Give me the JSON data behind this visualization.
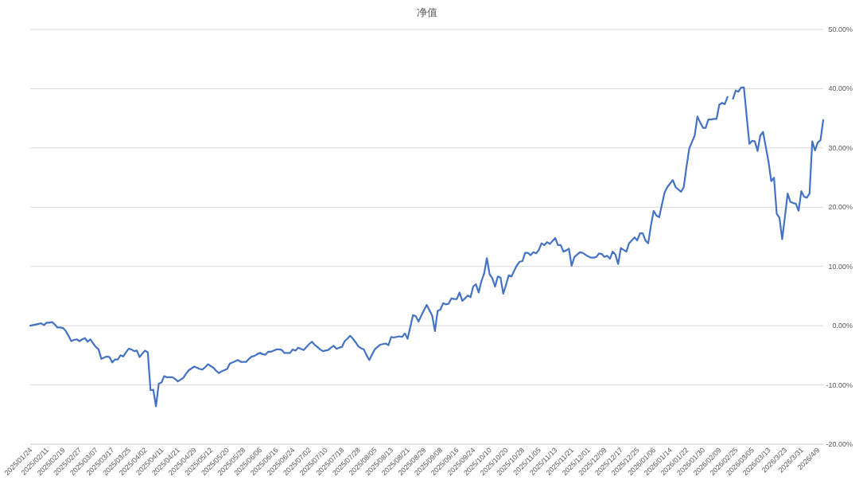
{
  "chart_data": {
    "type": "line",
    "title": "净值",
    "grid": "y",
    "line_style": "solid",
    "marker": "none",
    "categories": [
      "2025/01/24",
      null,
      null,
      null,
      null,
      null,
      "2025/02/11",
      null,
      null,
      null,
      null,
      null,
      "2025/02/19",
      null,
      null,
      null,
      null,
      null,
      "2025/02/27",
      null,
      null,
      null,
      null,
      null,
      "2025/03/07",
      null,
      null,
      null,
      null,
      null,
      "2025/03/17",
      null,
      null,
      null,
      null,
      null,
      "2025/03/25",
      null,
      null,
      null,
      null,
      null,
      "2025/04/02",
      null,
      null,
      null,
      null,
      null,
      "2025/04/11",
      null,
      null,
      null,
      null,
      null,
      "2025/04/21",
      null,
      null,
      null,
      null,
      null,
      "2025/04/29",
      null,
      null,
      null,
      null,
      null,
      "2025/05/12",
      null,
      null,
      null,
      null,
      null,
      "2025/05/20",
      null,
      null,
      null,
      null,
      null,
      "2025/05/28",
      null,
      null,
      null,
      null,
      null,
      "2025/06/06",
      null,
      null,
      null,
      null,
      null,
      "2025/06/16",
      null,
      null,
      null,
      null,
      null,
      "2025/06/24",
      null,
      null,
      null,
      null,
      null,
      "2025/07/02",
      null,
      null,
      null,
      null,
      null,
      "2025/07/10",
      null,
      null,
      null,
      null,
      null,
      "2025/07/18",
      null,
      null,
      null,
      null,
      null,
      "2025/07/28",
      null,
      null,
      null,
      null,
      null,
      "2025/08/05",
      null,
      null,
      null,
      null,
      null,
      "2025/08/13",
      null,
      null,
      null,
      null,
      null,
      "2025/08/21",
      null,
      null,
      null,
      null,
      null,
      "2025/08/29",
      null,
      null,
      null,
      null,
      null,
      "2025/09/08",
      null,
      null,
      null,
      null,
      null,
      "2025/09/16",
      null,
      null,
      null,
      null,
      null,
      "2025/09/24",
      null,
      null,
      null,
      null,
      null,
      "2025/10/10",
      null,
      null,
      null,
      null,
      null,
      "2025/10/20",
      null,
      null,
      null,
      null,
      null,
      "2025/10/28",
      null,
      null,
      null,
      null,
      null,
      "2025/11/05",
      null,
      null,
      null,
      null,
      null,
      "2025/11/13",
      null,
      null,
      null,
      null,
      null,
      "2025/11/21",
      null,
      null,
      null,
      null,
      null,
      "2025/12/01",
      null,
      null,
      null,
      null,
      null,
      "2025/12/09",
      null,
      null,
      null,
      null,
      null,
      "2025/12/17",
      null,
      null,
      null,
      null,
      null,
      "2025/12/25",
      null,
      null,
      null,
      null,
      null,
      "2026/01/06",
      null,
      null,
      null,
      null,
      null,
      "2026/01/14",
      null,
      null,
      null,
      null,
      null,
      "2026/01/22",
      null,
      null,
      null,
      null,
      null,
      "2026/01/30",
      null,
      null,
      null,
      null,
      null,
      "2026/02/09",
      null,
      null,
      null,
      null,
      null,
      "2026/02/25",
      null,
      null,
      null,
      null,
      null,
      "2026/03/05",
      null,
      null,
      null,
      null,
      null,
      "2026/03/13",
      null,
      null,
      null,
      null,
      null,
      "2026/3/23",
      null,
      null,
      null,
      null,
      null,
      "2026/3/31",
      null,
      null,
      null,
      null,
      null,
      "2026/4/9",
      null,
      null
    ],
    "ylim": [
      -20,
      50
    ],
    "yticks": [
      {
        "value": -20,
        "label": "-20.00%"
      },
      {
        "value": -10,
        "label": "-10.00%"
      },
      {
        "value": 0,
        "label": "0.00%"
      },
      {
        "value": 10,
        "label": "10.00%"
      },
      {
        "value": 20,
        "label": "20.00%"
      },
      {
        "value": 30,
        "label": "30.00%"
      },
      {
        "value": 40,
        "label": "40.00%"
      },
      {
        "value": 50,
        "label": "50.00%"
      }
    ],
    "series": [
      {
        "color": "#4472c4",
        "values": [
          0,
          0.1,
          0.2,
          0.3,
          0.4,
          0.1,
          0.5,
          0.5,
          0.6,
          0.2,
          -0.3,
          -0.3,
          -0.4,
          -0.9,
          -1.7,
          -2.6,
          -2.4,
          -2.3,
          -2.6,
          -2.3,
          -2.1,
          -2.7,
          -2.3,
          -3.0,
          -3.6,
          -4.0,
          -5.6,
          -5.4,
          -5.2,
          -5.3,
          -6.2,
          -5.7,
          -5.7,
          -5.0,
          -5.2,
          -4.5,
          -3.9,
          -4.0,
          -4.3,
          -4.2,
          -5.3,
          -4.7,
          -4.2,
          -4.5,
          -10.9,
          -10.8,
          -13.6,
          -9.8,
          -9.6,
          -8.5,
          -8.7,
          -8.7,
          -8.7,
          -9.0,
          -9.4,
          -9.1,
          -8.8,
          -8.1,
          -7.5,
          -7.2,
          -6.9,
          -7.1,
          -7.3,
          -7.4,
          -7.0,
          -6.5,
          -6.8,
          -7.1,
          -7.6,
          -8.0,
          -7.7,
          -7.5,
          -7.3,
          -6.4,
          -6.2,
          -6.0,
          -5.8,
          -6.1,
          -6.1,
          -6.1,
          -5.6,
          -5.2,
          -5.1,
          -4.8,
          -4.6,
          -4.8,
          -4.9,
          -4.4,
          -4.4,
          -4.2,
          -4.0,
          -4.0,
          -4.1,
          -4.6,
          -4.6,
          -4.6,
          -4.0,
          -4.2,
          -3.7,
          -3.9,
          -4.1,
          -3.6,
          -3.1,
          -2.7,
          -3.2,
          -3.6,
          -4.0,
          -4.3,
          -4.2,
          -4.1,
          -3.7,
          -3.4,
          -3.9,
          -3.7,
          -3.6,
          -2.6,
          -2.2,
          -1.7,
          -2.2,
          -2.8,
          -3.5,
          -3.8,
          -4.0,
          -5.0,
          -5.8,
          -4.9,
          -4.0,
          -3.6,
          -3.2,
          -3.1,
          -3.0,
          -3.3,
          -1.9,
          -2.0,
          -1.9,
          -1.8,
          -1.9,
          -1.3,
          -2.2,
          -0.2,
          1.8,
          1.6,
          0.7,
          1.7,
          2.6,
          3.5,
          2.6,
          1.7,
          -0.9,
          2.5,
          2.7,
          3.8,
          3.6,
          3.7,
          4.6,
          4.5,
          4.5,
          5.6,
          4.2,
          4.6,
          5.1,
          4.8,
          6.6,
          7.0,
          5.6,
          7.5,
          8.8,
          11.4,
          8.7,
          8.0,
          6.6,
          8.3,
          8.1,
          5.4,
          6.9,
          8.5,
          8.3,
          9.3,
          10.2,
          10.8,
          10.9,
          12.3,
          12.3,
          11.9,
          12.4,
          12.2,
          12.8,
          13.9,
          13.6,
          14.1,
          13.8,
          14.3,
          14.8,
          13.6,
          13.6,
          12.5,
          12.7,
          13.0,
          10.1,
          11.6,
          12.0,
          12.4,
          12.3,
          12.0,
          11.7,
          11.5,
          11.5,
          11.6,
          12.2,
          12.1,
          11.6,
          11.8,
          11.3,
          12.5,
          12.0,
          10.4,
          13.1,
          12.8,
          12.5,
          13.9,
          14.4,
          14.9,
          14.4,
          15.6,
          15.6,
          14.4,
          13.9,
          16.9,
          19.4,
          18.6,
          18.3,
          20.4,
          22.5,
          23.4,
          24.0,
          24.6,
          23.4,
          23.0,
          22.6,
          23.4,
          26.8,
          29.9,
          31.0,
          32.1,
          35.3,
          34.3,
          33.4,
          33.4,
          34.8,
          34.8,
          34.9,
          34.9,
          37.3,
          37.6,
          37.4,
          38.6,
          null,
          38.3,
          39.7,
          39.5,
          40.2,
          40.2,
          35.4,
          30.7,
          31.2,
          31.1,
          29.5,
          32.1,
          32.7,
          30.2,
          27.7,
          24.4,
          25.0,
          18.9,
          18.2,
          14.6,
          18.4,
          22.3,
          20.9,
          20.7,
          20.6,
          19.4,
          22.7,
          21.8,
          21.6,
          22.3,
          31.1,
          29.6,
          30.9,
          31.3,
          34.7
        ]
      }
    ]
  }
}
